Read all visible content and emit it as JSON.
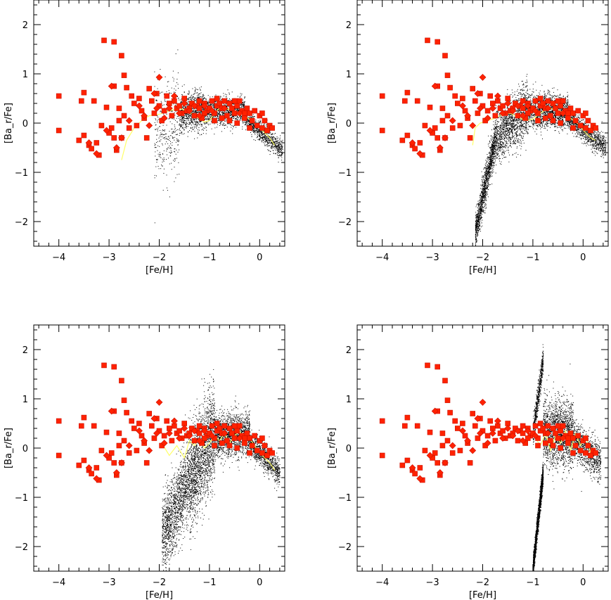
{
  "chart_data": [
    {
      "type": "scatter",
      "panel": "top-left",
      "title": "",
      "xlabel": "[Fe/H]",
      "ylabel": "[Ba_r/Fe]",
      "xlim": [
        -4.5,
        0.5
      ],
      "ylim": [
        -2.5,
        2.5
      ],
      "xticks": [
        -4,
        -3,
        -2,
        -1,
        0
      ],
      "xtick_labels": [
        "−4",
        "−3",
        "−2",
        "−1",
        "0"
      ],
      "yticks": [
        -2,
        -1,
        0,
        1,
        2
      ],
      "ytick_labels": [
        "−2",
        "−1",
        "0",
        "1",
        "2"
      ],
      "grid": false,
      "legend": "none",
      "colors": {
        "model_points": "#000000",
        "observed_markers": "#ff2200",
        "observed_edges": "#cc1100",
        "mean_line": "#ffff66"
      },
      "model_cloud": {
        "description_color": "black dots",
        "segments": [
          {
            "fe": [
              -2.1,
              -1.6
            ],
            "ba_center": [
              -0.3,
              0.1
            ],
            "ba_spread": 0.9,
            "n": 350
          },
          {
            "fe": [
              -1.6,
              -1.1
            ],
            "ba_center": [
              0.15,
              0.3
            ],
            "ba_spread": 0.35,
            "n": 900
          },
          {
            "fe": [
              -1.1,
              -0.3
            ],
            "ba_center": [
              0.25,
              0.25
            ],
            "ba_spread": 0.25,
            "n": 1200
          },
          {
            "fe": [
              -0.3,
              0.45
            ],
            "ba_center": [
              0.1,
              -0.55
            ],
            "ba_spread": 0.18,
            "n": 900
          }
        ]
      },
      "mean_line": {
        "x": [
          -2.75,
          -2.65,
          -2.5,
          -2.35,
          -2.2,
          -2.0,
          -1.8,
          -1.6,
          -1.4,
          -1.25,
          -1.1,
          -1.0,
          -0.9,
          -0.8,
          -0.6,
          -0.4,
          -0.2,
          -0.05,
          0.1,
          0.2,
          0.3
        ],
        "y": [
          -0.75,
          -0.35,
          -0.1,
          0.05,
          0.15,
          0.18,
          0.25,
          0.3,
          0.22,
          0.12,
          0.02,
          0.05,
          0.2,
          0.3,
          0.28,
          0.2,
          0.08,
          -0.05,
          -0.2,
          -0.3,
          -0.45
        ]
      }
    },
    {
      "type": "scatter",
      "panel": "top-right",
      "title": "",
      "xlabel": "[Fe/H]",
      "ylabel": "[Ba_r/Fe]",
      "xlim": [
        -4.5,
        0.5
      ],
      "ylim": [
        -2.5,
        2.5
      ],
      "xticks": [
        -4,
        -3,
        -2,
        -1,
        0
      ],
      "xtick_labels": [
        "−4",
        "−3",
        "−2",
        "−1",
        "0"
      ],
      "yticks": [
        -2,
        -1,
        0,
        1,
        2
      ],
      "ytick_labels": [
        "−2",
        "−1",
        "0",
        "1",
        "2"
      ],
      "grid": false,
      "legend": "none",
      "colors": {
        "model_points": "#000000",
        "observed_markers": "#ff2200",
        "observed_edges": "#cc1100",
        "mean_line": "#ffff66"
      },
      "model_cloud": {
        "description_color": "black dots",
        "segments": [
          {
            "fe": [
              -2.15,
              -1.75
            ],
            "ba_center": [
              -2.2,
              -0.3
            ],
            "ba_spread": 0.35,
            "n": 1400
          },
          {
            "fe": [
              -1.75,
              -1.1
            ],
            "ba_center": [
              -0.3,
              0.3
            ],
            "ba_spread": 0.5,
            "n": 1400
          },
          {
            "fe": [
              -1.1,
              -0.3
            ],
            "ba_center": [
              0.25,
              0.25
            ],
            "ba_spread": 0.3,
            "n": 1500
          },
          {
            "fe": [
              -0.3,
              0.45
            ],
            "ba_center": [
              0.1,
              -0.5
            ],
            "ba_spread": 0.2,
            "n": 1000
          }
        ]
      },
      "mean_line": {
        "x": [
          -2.2,
          -2.15,
          -2.05,
          -1.9,
          -1.75,
          -1.6,
          -1.45,
          -1.3,
          -1.15,
          -1.0,
          -0.85,
          -0.7,
          -0.55,
          -0.4,
          -0.25,
          -0.1,
          0.05,
          0.15,
          0.25
        ],
        "y": [
          -0.45,
          -0.1,
          0.0,
          0.05,
          0.1,
          0.18,
          0.2,
          0.12,
          0.05,
          0.08,
          0.2,
          0.3,
          0.28,
          0.22,
          0.1,
          -0.02,
          -0.2,
          -0.3,
          -0.35
        ]
      }
    },
    {
      "type": "scatter",
      "panel": "bottom-left",
      "title": "",
      "xlabel": "[Fe/H]",
      "ylabel": "[Ba_r/Fe]",
      "xlim": [
        -4.5,
        0.5
      ],
      "ylim": [
        -2.5,
        2.5
      ],
      "xticks": [
        -4,
        -3,
        -2,
        -1,
        0
      ],
      "xtick_labels": [
        "−4",
        "−3",
        "−2",
        "−1",
        "0"
      ],
      "yticks": [
        -2,
        -1,
        0,
        1,
        2
      ],
      "ytick_labels": [
        "−2",
        "−1",
        "0",
        "1",
        "2"
      ],
      "grid": false,
      "legend": "none",
      "colors": {
        "model_points": "#000000",
        "observed_markers": "#ff2200",
        "observed_edges": "#cc1100",
        "mean_line": "#ffff66"
      },
      "model_cloud": {
        "description_color": "black dots",
        "segments": [
          {
            "fe": [
              -1.95,
              -1.4
            ],
            "ba_center": [
              -1.8,
              -0.6
            ],
            "ba_spread": 0.7,
            "n": 1500
          },
          {
            "fe": [
              -1.4,
              -0.9
            ],
            "ba_center": [
              -0.6,
              0.3
            ],
            "ba_spread": 0.9,
            "n": 1800
          },
          {
            "fe": [
              -0.9,
              -0.2
            ],
            "ba_center": [
              0.25,
              0.3
            ],
            "ba_spread": 0.4,
            "n": 1600
          },
          {
            "fe": [
              -0.2,
              0.4
            ],
            "ba_center": [
              0.1,
              -0.5
            ],
            "ba_spread": 0.25,
            "n": 900
          }
        ]
      },
      "mean_line": {
        "x": [
          -1.95,
          -1.8,
          -1.65,
          -1.5,
          -1.4,
          -1.3,
          -1.2,
          -1.1,
          -1.0,
          -0.9,
          -0.8,
          -0.7,
          -0.6,
          -0.5,
          -0.4,
          -0.3,
          -0.2,
          -0.1,
          0.0,
          0.1,
          0.2,
          0.3
        ],
        "y": [
          0.1,
          -0.15,
          0.05,
          -0.2,
          0.15,
          0.05,
          0.2,
          0.0,
          0.1,
          0.25,
          0.15,
          0.3,
          0.1,
          0.25,
          0.35,
          0.15,
          0.2,
          0.05,
          -0.1,
          -0.2,
          -0.3,
          -0.45
        ]
      }
    },
    {
      "type": "scatter",
      "panel": "bottom-right",
      "title": "",
      "xlabel": "[Fe/H]",
      "ylabel": "[Ba_r/Fe]",
      "xlim": [
        -4.5,
        0.5
      ],
      "ylim": [
        -2.5,
        2.5
      ],
      "xticks": [
        -4,
        -3,
        -2,
        -1,
        0
      ],
      "xtick_labels": [
        "−4",
        "−3",
        "−2",
        "−1",
        "0"
      ],
      "yticks": [
        -2,
        -1,
        0,
        1,
        2
      ],
      "ytick_labels": [
        "−2",
        "−1",
        "0",
        "1",
        "2"
      ],
      "grid": false,
      "legend": "none",
      "colors": {
        "model_points": "#000000",
        "observed_markers": "#ff2200",
        "observed_edges": "#cc1100",
        "mean_line": "#ffff66"
      },
      "model_cloud": {
        "description_color": "black dots",
        "segments": [
          {
            "fe": [
              -1.0,
              -0.8
            ],
            "ba_center": [
              -2.4,
              -0.5
            ],
            "ba_spread": 0.2,
            "n": 1800
          },
          {
            "fe": [
              -1.0,
              -0.8
            ],
            "ba_center": [
              0.3,
              1.8
            ],
            "ba_spread": 0.25,
            "n": 600
          },
          {
            "fe": [
              -0.8,
              -0.2
            ],
            "ba_center": [
              0.3,
              0.3
            ],
            "ba_spread": 0.6,
            "n": 1800
          },
          {
            "fe": [
              -0.2,
              0.35
            ],
            "ba_center": [
              0.2,
              -0.3
            ],
            "ba_spread": 0.35,
            "n": 900
          }
        ]
      },
      "mean_line": {
        "x": [
          -0.95,
          -0.85,
          -0.75,
          -0.65,
          -0.55,
          -0.45,
          -0.35,
          -0.25,
          -0.15,
          -0.05,
          0.05,
          0.15,
          0.25
        ],
        "y": [
          0.2,
          0.05,
          0.3,
          -0.05,
          0.25,
          0.1,
          0.35,
          -0.05,
          0.3,
          0.05,
          0.25,
          -0.1,
          -0.15
        ]
      }
    }
  ],
  "observed_stars": {
    "squares": [
      [
        -4.0,
        0.55
      ],
      [
        -4.0,
        -0.15
      ],
      [
        -3.6,
        -0.35
      ],
      [
        -3.55,
        0.45
      ],
      [
        -3.5,
        0.62
      ],
      [
        -3.5,
        -0.25
      ],
      [
        -3.4,
        -0.45
      ],
      [
        -3.35,
        -0.52
      ],
      [
        -3.3,
        0.45
      ],
      [
        -3.25,
        -0.4
      ],
      [
        -3.2,
        -0.65
      ],
      [
        -3.15,
        -0.05
      ],
      [
        -3.1,
        1.68
      ],
      [
        -3.05,
        0.32
      ],
      [
        -3.0,
        -0.2
      ],
      [
        -2.95,
        -0.1
      ],
      [
        -2.9,
        1.65
      ],
      [
        -2.9,
        0.75
      ],
      [
        -2.9,
        -0.3
      ],
      [
        -2.85,
        -0.55
      ],
      [
        -2.8,
        0.3
      ],
      [
        -2.8,
        0.05
      ],
      [
        -2.75,
        1.37
      ],
      [
        -2.75,
        -0.3
      ],
      [
        -2.7,
        0.97
      ],
      [
        -2.7,
        0.15
      ],
      [
        -2.65,
        0.72
      ],
      [
        -2.6,
        -0.1
      ],
      [
        -2.55,
        0.55
      ],
      [
        -2.5,
        0.4
      ],
      [
        -2.45,
        -0.05
      ],
      [
        -2.4,
        0.5
      ],
      [
        -2.35,
        0.25
      ],
      [
        -2.3,
        0.1
      ],
      [
        -2.25,
        -0.3
      ],
      [
        -2.2,
        0.7
      ],
      [
        -2.15,
        0.45
      ],
      [
        -2.1,
        0.2
      ],
      [
        -2.05,
        0.6
      ],
      [
        -2.0,
        0.35
      ],
      [
        -1.95,
        0.05
      ],
      [
        -1.9,
        0.25
      ],
      [
        -1.85,
        0.55
      ],
      [
        -1.8,
        0.4
      ],
      [
        -1.75,
        0.15
      ],
      [
        -1.7,
        0.45
      ],
      [
        -1.65,
        0.3
      ],
      [
        -1.6,
        0.35
      ],
      [
        -1.55,
        0.2
      ],
      [
        -1.5,
        0.5
      ],
      [
        -1.45,
        0.25
      ],
      [
        -1.4,
        0.3
      ],
      [
        -1.35,
        0.4
      ],
      [
        -1.3,
        0.15
      ],
      [
        -1.25,
        0.35
      ],
      [
        -1.2,
        0.3
      ],
      [
        -1.15,
        0.1
      ],
      [
        -1.1,
        0.4
      ],
      [
        -1.05,
        0.25
      ],
      [
        -1.0,
        0.3
      ],
      [
        -0.95,
        0.45
      ],
      [
        -0.9,
        0.2
      ],
      [
        -0.85,
        0.35
      ],
      [
        -0.8,
        0.4
      ],
      [
        -0.75,
        0.3
      ],
      [
        -0.7,
        0.45
      ],
      [
        -0.65,
        0.15
      ],
      [
        -0.6,
        0.4
      ],
      [
        -0.55,
        0.3
      ],
      [
        -0.5,
        0.2
      ],
      [
        -0.45,
        0.35
      ],
      [
        -0.4,
        0.45
      ],
      [
        -0.35,
        0.25
      ],
      [
        -0.3,
        0.1
      ],
      [
        -0.25,
        0.3
      ],
      [
        -0.2,
        0.2
      ],
      [
        -0.15,
        0.05
      ],
      [
        -0.1,
        0.25
      ],
      [
        -0.05,
        -0.05
      ],
      [
        0.0,
        0.15
      ],
      [
        0.05,
        -0.1
      ],
      [
        0.1,
        0.05
      ],
      [
        0.15,
        -0.15
      ],
      [
        0.2,
        -0.05
      ],
      [
        0.25,
        -0.1
      ],
      [
        -0.9,
        0.05
      ],
      [
        -0.75,
        0.1
      ],
      [
        -0.6,
        0.05
      ],
      [
        -0.45,
        0.0
      ],
      [
        -0.3,
        0.2
      ],
      [
        -1.1,
        0.2
      ],
      [
        -0.85,
        0.5
      ],
      [
        -0.5,
        0.45
      ],
      [
        -0.2,
        -0.1
      ],
      [
        0.05,
        0.2
      ],
      [
        -1.2,
        0.45
      ]
    ],
    "diamonds": [
      [
        -3.4,
        -0.4
      ],
      [
        -3.25,
        -0.62
      ],
      [
        -3.05,
        -0.15
      ],
      [
        -2.95,
        0.75
      ],
      [
        -2.85,
        -0.5
      ],
      [
        -2.75,
        -0.3
      ],
      [
        -2.6,
        0.05
      ],
      [
        -2.4,
        0.35
      ],
      [
        -2.3,
        0.15
      ],
      [
        -2.2,
        -0.05
      ],
      [
        -2.1,
        0.6
      ],
      [
        -2.05,
        0.3
      ],
      [
        -2.0,
        0.93
      ],
      [
        -1.9,
        0.1
      ],
      [
        -1.8,
        0.3
      ],
      [
        -1.7,
        0.55
      ],
      [
        -1.6,
        0.2
      ],
      [
        -1.5,
        0.4
      ],
      [
        -1.4,
        0.25
      ],
      [
        -1.3,
        0.35
      ],
      [
        -1.2,
        0.15
      ],
      [
        -1.1,
        0.35
      ],
      [
        -0.95,
        0.25
      ],
      [
        -0.7,
        0.3
      ],
      [
        -0.4,
        0.2
      ]
    ]
  }
}
